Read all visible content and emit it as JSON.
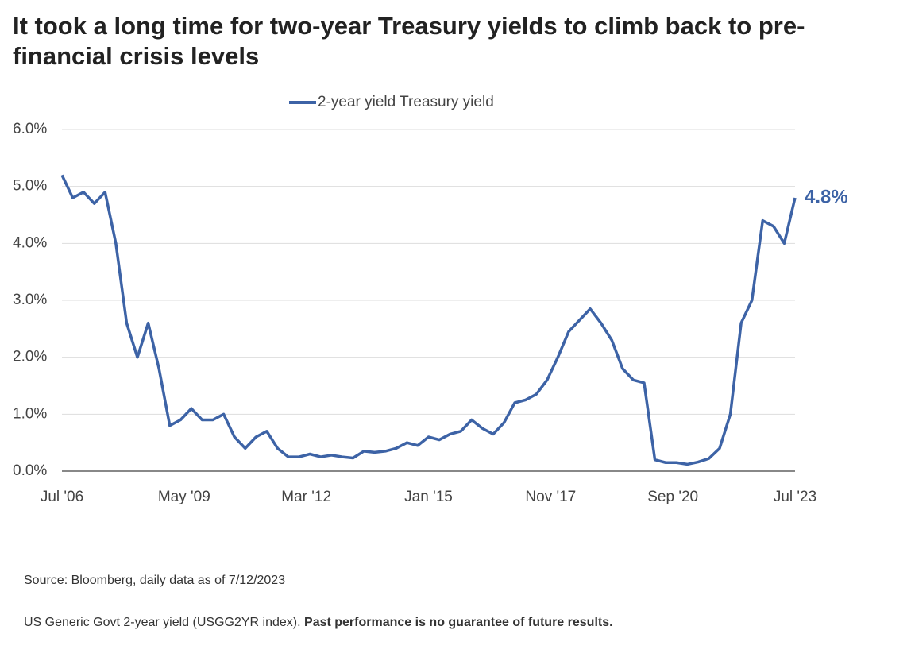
{
  "chart_data": {
    "type": "line",
    "title": "It took a long time for two-year Treasury yields to climb back to pre-financial crisis levels",
    "x": [
      "2006-07",
      "2006-10",
      "2007-01",
      "2007-04",
      "2007-07",
      "2007-10",
      "2008-01",
      "2008-04",
      "2008-07",
      "2008-10",
      "2009-01",
      "2009-04",
      "2009-07",
      "2009-10",
      "2010-01",
      "2010-04",
      "2010-07",
      "2010-10",
      "2011-01",
      "2011-04",
      "2011-07",
      "2011-10",
      "2012-01",
      "2012-04",
      "2012-07",
      "2012-10",
      "2013-01",
      "2013-04",
      "2013-07",
      "2013-10",
      "2014-01",
      "2014-04",
      "2014-07",
      "2014-10",
      "2015-01",
      "2015-04",
      "2015-07",
      "2015-10",
      "2016-01",
      "2016-04",
      "2016-07",
      "2016-10",
      "2017-01",
      "2017-04",
      "2017-07",
      "2017-10",
      "2018-01",
      "2018-04",
      "2018-07",
      "2018-10",
      "2019-01",
      "2019-04",
      "2019-07",
      "2019-10",
      "2020-01",
      "2020-04",
      "2020-07",
      "2020-10",
      "2021-01",
      "2021-04",
      "2021-07",
      "2021-10",
      "2022-01",
      "2022-04",
      "2022-07",
      "2022-10",
      "2023-01",
      "2023-04",
      "2023-07"
    ],
    "series": [
      {
        "name": "2-year yield Treasury yield",
        "color": "#3d63a6",
        "values": [
          5.2,
          4.8,
          4.9,
          4.7,
          4.9,
          4.0,
          2.6,
          2.0,
          2.6,
          1.8,
          0.8,
          0.9,
          1.1,
          0.9,
          0.9,
          1.0,
          0.6,
          0.4,
          0.6,
          0.7,
          0.4,
          0.25,
          0.25,
          0.3,
          0.25,
          0.28,
          0.25,
          0.23,
          0.35,
          0.33,
          0.35,
          0.4,
          0.5,
          0.45,
          0.6,
          0.55,
          0.65,
          0.7,
          0.9,
          0.75,
          0.65,
          0.85,
          1.2,
          1.25,
          1.35,
          1.6,
          2.0,
          2.45,
          2.65,
          2.85,
          2.6,
          2.3,
          1.8,
          1.6,
          1.55,
          0.2,
          0.15,
          0.15,
          0.12,
          0.16,
          0.22,
          0.4,
          1.0,
          2.6,
          3.0,
          4.4,
          4.3,
          4.0,
          4.8
        ],
        "value_labels": [
          null,
          null,
          null,
          null,
          null,
          null,
          null,
          null,
          null,
          null,
          null,
          null,
          null,
          null,
          null,
          null,
          null,
          null,
          null,
          null,
          null,
          null,
          null,
          null,
          null,
          null,
          null,
          null,
          null,
          null,
          null,
          null,
          null,
          null,
          null,
          null,
          null,
          null,
          null,
          null,
          null,
          null,
          null,
          null,
          null,
          null,
          null,
          null,
          null,
          null,
          null,
          null,
          null,
          null,
          null,
          null,
          null,
          null,
          null,
          null,
          null,
          null,
          null,
          null,
          null,
          null,
          null,
          null,
          "4.8%"
        ]
      }
    ],
    "xlim": [
      "2006-07",
      "2023-07"
    ],
    "xticks": [
      {
        "value": "2006-07",
        "label": "Jul '06"
      },
      {
        "value": "2009-05",
        "label": "May '09"
      },
      {
        "value": "2012-03",
        "label": "Mar '12"
      },
      {
        "value": "2015-01",
        "label": "Jan '15"
      },
      {
        "value": "2017-11",
        "label": "Nov '17"
      },
      {
        "value": "2020-09",
        "label": "Sep '20"
      },
      {
        "value": "2023-07",
        "label": "Jul '23"
      }
    ],
    "ylim": [
      0,
      6
    ],
    "yticks": [
      {
        "value": 0,
        "label": "0.0%"
      },
      {
        "value": 1,
        "label": "1.0%"
      },
      {
        "value": 2,
        "label": "2.0%"
      },
      {
        "value": 3,
        "label": "3.0%"
      },
      {
        "value": 4,
        "label": "4.0%"
      },
      {
        "value": 5,
        "label": "5.0%"
      },
      {
        "value": 6,
        "label": "6.0%"
      }
    ],
    "grid": true,
    "source": "Source: Bloomberg, daily data as of 7/12/2023",
    "note": "US Generic Govt 2-year yield (USGG2YR index).",
    "disclaimer": "Past performance is no guarantee of future results."
  }
}
